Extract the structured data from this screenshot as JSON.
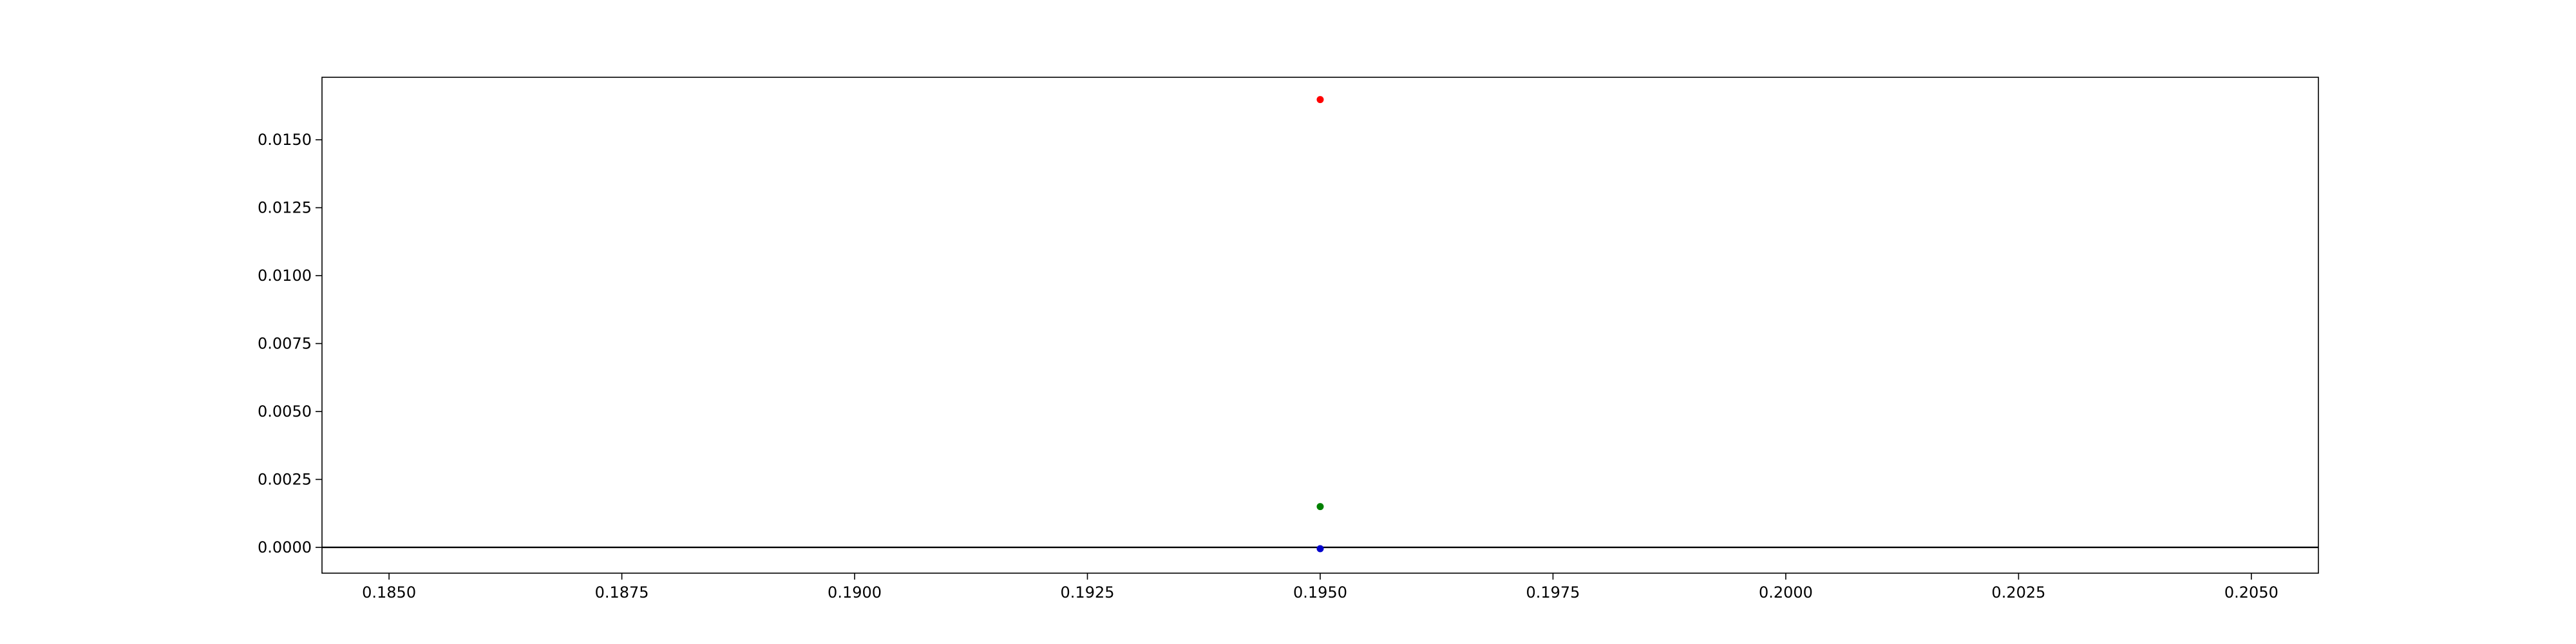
{
  "chart_data": {
    "type": "scatter",
    "title": "",
    "xlabel": "",
    "ylabel": "",
    "xlim": [
      0.18428,
      0.20572
    ],
    "ylim": [
      -0.00095,
      0.0173
    ],
    "xticks": [
      "0.1850",
      "0.1875",
      "0.1900",
      "0.1925",
      "0.1950",
      "0.1975",
      "0.2000",
      "0.2025",
      "0.2050"
    ],
    "xtick_values": [
      0.185,
      0.1875,
      0.19,
      0.1925,
      0.195,
      0.1975,
      0.2,
      0.2025,
      0.205
    ],
    "yticks": [
      "0.0000",
      "0.0025",
      "0.0050",
      "0.0075",
      "0.0100",
      "0.0125",
      "0.0150"
    ],
    "ytick_values": [
      0,
      0.0025,
      0.005,
      0.0075,
      0.01,
      0.0125,
      0.015
    ],
    "grid": false,
    "reference_line": {
      "y": 0,
      "color": "#000000"
    },
    "series": [
      {
        "color": "#ff0000",
        "points": [
          [
            0.195,
            0.01648
          ]
        ]
      },
      {
        "color": "#008000",
        "points": [
          [
            0.195,
            0.0015
          ]
        ]
      },
      {
        "color": "#0000cc",
        "points": [
          [
            0.195,
            -5e-05
          ]
        ]
      }
    ]
  }
}
